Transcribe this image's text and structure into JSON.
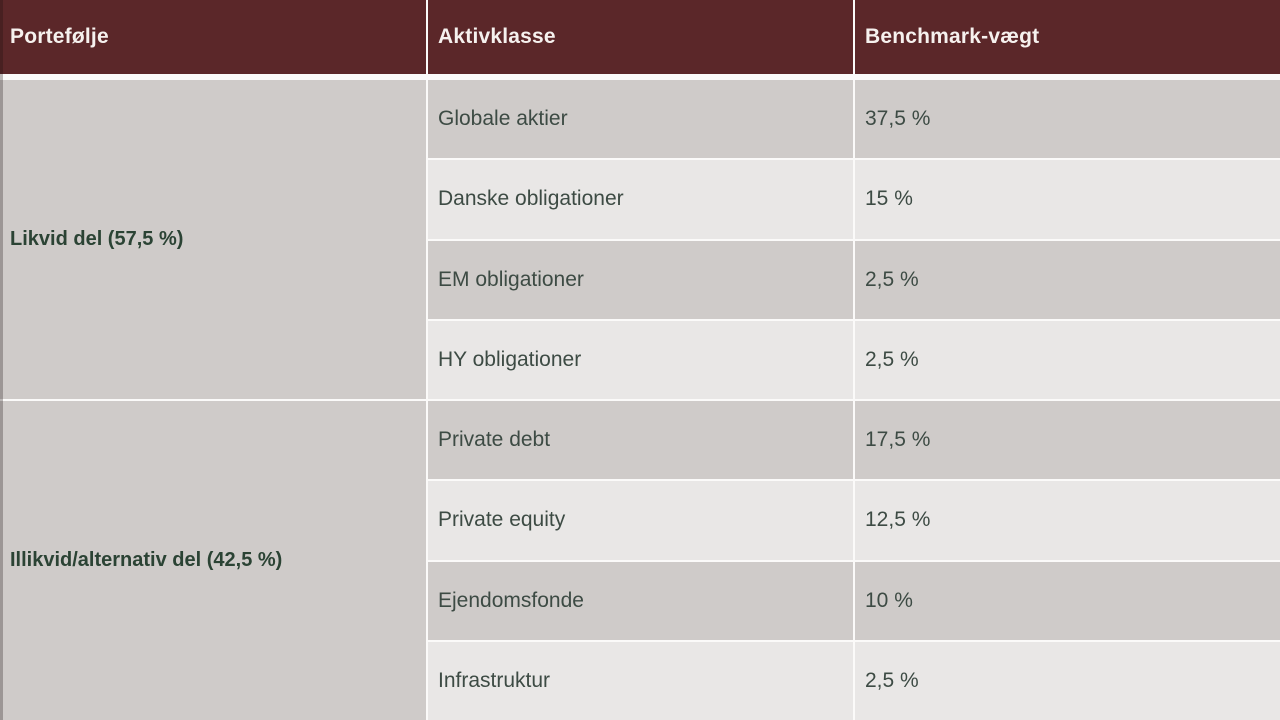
{
  "colors": {
    "header_bg": "#5b2729",
    "header_text": "#f6f1ee",
    "row_dark": "#cfcbc9",
    "row_light": "#e9e7e6",
    "divider": "#fbfaf9",
    "group_label_text": "#2b4334",
    "cell_text": "#3d4b44"
  },
  "table": {
    "headers": [
      {
        "label": "Portefølje"
      },
      {
        "label": "Aktivklasse"
      },
      {
        "label": "Benchmark-vægt"
      }
    ],
    "groups": [
      {
        "label": "Likvid del (57,5 %)",
        "rows": [
          {
            "asset": "Globale aktier",
            "weight": "37,5 %"
          },
          {
            "asset": "Danske obligationer",
            "weight": "15 %"
          },
          {
            "asset": "EM obligationer",
            "weight": "2,5 %"
          },
          {
            "asset": "HY obligationer",
            "weight": "2,5 %"
          }
        ]
      },
      {
        "label": "Illikvid/alternativ del (42,5 %)",
        "rows": [
          {
            "asset": "Private debt",
            "weight": "17,5 %"
          },
          {
            "asset": "Private equity",
            "weight": "12,5 %"
          },
          {
            "asset": "Ejendomsfonde",
            "weight": "10 %"
          },
          {
            "asset": "Infrastruktur",
            "weight": "2,5 %"
          }
        ]
      }
    ]
  },
  "chart_data": {
    "type": "table",
    "columns": [
      "Portefølje",
      "Aktivklasse",
      "Benchmark-vægt"
    ],
    "rows": [
      [
        "Likvid del (57,5 %)",
        "Globale aktier",
        "37,5 %"
      ],
      [
        "Likvid del (57,5 %)",
        "Danske obligationer",
        "15 %"
      ],
      [
        "Likvid del (57,5 %)",
        "EM obligationer",
        "2,5 %"
      ],
      [
        "Likvid del (57,5 %)",
        "HY obligationer",
        "2,5 %"
      ],
      [
        "Illikvid/alternativ del (42,5 %)",
        "Private debt",
        "17,5 %"
      ],
      [
        "Illikvid/alternativ del (42,5 %)",
        "Private equity",
        "12,5 %"
      ],
      [
        "Illikvid/alternativ del (42,5 %)",
        "Ejendomsfonde",
        "10 %"
      ],
      [
        "Illikvid/alternativ del (42,5 %)",
        "Infrastruktur",
        "2,5 %"
      ]
    ]
  }
}
